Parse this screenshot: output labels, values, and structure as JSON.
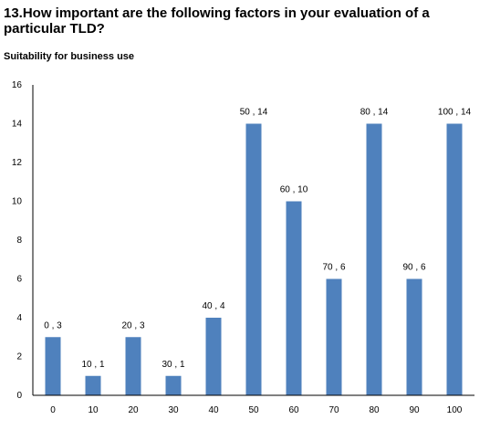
{
  "title": "13.How important are the following factors in your evaluation of a particular TLD?",
  "subtitle": "Suitability for business use",
  "chart_data": {
    "type": "bar",
    "categories": [
      "0",
      "10",
      "20",
      "30",
      "40",
      "50",
      "60",
      "70",
      "80",
      "90",
      "100"
    ],
    "values": [
      3,
      1,
      3,
      1,
      4,
      14,
      10,
      6,
      14,
      6,
      14
    ],
    "data_labels": [
      "0 , 3",
      "10 , 1",
      "20 , 3",
      "30 , 1",
      "40 , 4",
      "50 , 14",
      "60 , 10",
      "70 , 6",
      "80 , 14",
      "90 , 6",
      "100 , 14"
    ],
    "ylim": [
      0,
      16
    ],
    "yticks": [
      "0",
      "2",
      "4",
      "6",
      "8",
      "10",
      "12",
      "14",
      "16"
    ],
    "grid": false,
    "bar_color": "#4f81bd"
  }
}
